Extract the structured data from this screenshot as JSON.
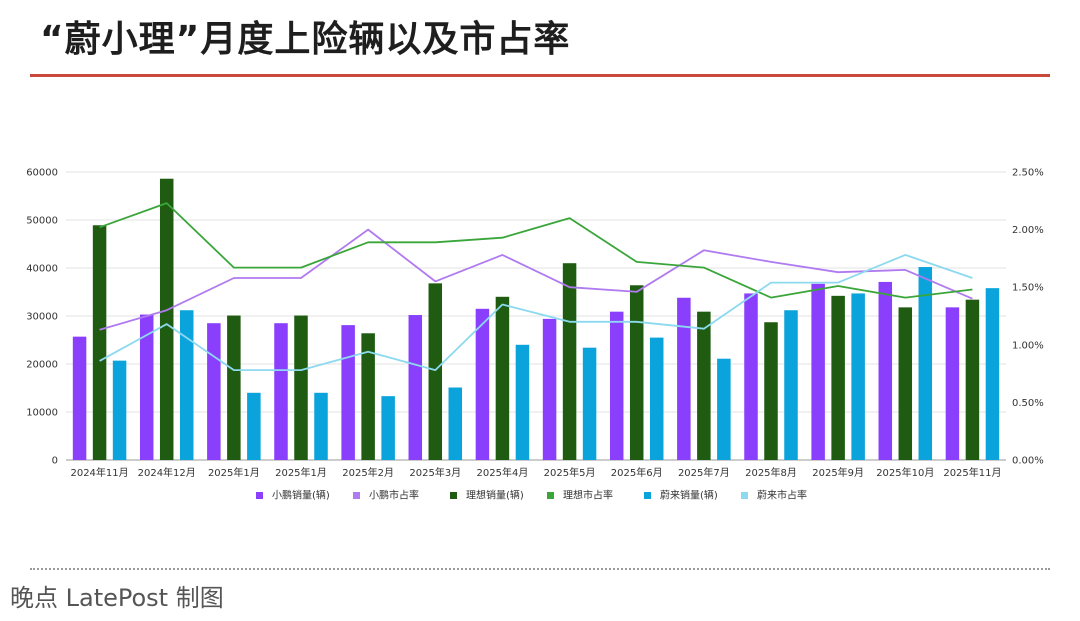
{
  "page": {
    "title": "“蔚小理”月度上险辆以及市占率",
    "credit": "晚点 LatePost 制图"
  },
  "chart_data": {
    "type": "bar",
    "title": "“蔚小理”月度上险辆以及市占率",
    "categories": [
      "2024年11月",
      "2024年12月",
      "2025年1月",
      "2025年1月",
      "2025年2月",
      "2025年3月",
      "2025年4月",
      "2025年5月",
      "2025年6月",
      "2025年7月",
      "2025年8月",
      "2025年9月",
      "2025年10月",
      "2025年11月"
    ],
    "y_left": {
      "min": 0,
      "max": 60000,
      "ticks": [
        "0",
        "10000",
        "20000",
        "30000",
        "40000",
        "50000",
        "60000"
      ]
    },
    "y_right": {
      "min": 0,
      "max": 2.5,
      "ticks": [
        "0.00%",
        "0.50%",
        "1.00%",
        "1.50%",
        "2.00%",
        "2.50%"
      ]
    },
    "grid": "horizontal",
    "legend_position": "bottom",
    "bar_series": [
      {
        "name": "小鹏销量(辆)",
        "color": "#8a3ffc",
        "values": [
          25700,
          30300,
          28500,
          28500,
          28100,
          30200,
          31500,
          29400,
          30900,
          33800,
          34700,
          36700,
          37100,
          31800
        ]
      },
      {
        "name": "理想销量(辆)",
        "color": "#1f5c12",
        "values": [
          48900,
          58600,
          30100,
          30100,
          26400,
          36800,
          34000,
          41000,
          36400,
          30900,
          28700,
          34200,
          31800,
          33400
        ]
      },
      {
        "name": "蔚来销量(辆)",
        "color": "#0aa3dc",
        "values": [
          20700,
          31200,
          14000,
          14000,
          13300,
          15100,
          24000,
          23400,
          25500,
          21100,
          31200,
          34700,
          40200,
          35800
        ]
      }
    ],
    "line_series": [
      {
        "name": "小鹏市占率",
        "color": "#b07af0",
        "values": [
          1.13,
          1.3,
          1.58,
          1.58,
          2.0,
          1.55,
          1.78,
          1.5,
          1.46,
          1.82,
          1.72,
          1.63,
          1.65,
          1.4
        ]
      },
      {
        "name": "理想市占率",
        "color": "#3aa63a",
        "values": [
          2.02,
          2.23,
          1.67,
          1.67,
          1.89,
          1.89,
          1.93,
          2.1,
          1.72,
          1.67,
          1.41,
          1.51,
          1.41,
          1.48
        ]
      },
      {
        "name": "蔚来市占率",
        "color": "#8cd9f0",
        "values": [
          0.86,
          1.18,
          0.78,
          0.78,
          0.94,
          0.78,
          1.35,
          1.2,
          1.2,
          1.14,
          1.54,
          1.54,
          1.78,
          1.58
        ]
      }
    ]
  }
}
